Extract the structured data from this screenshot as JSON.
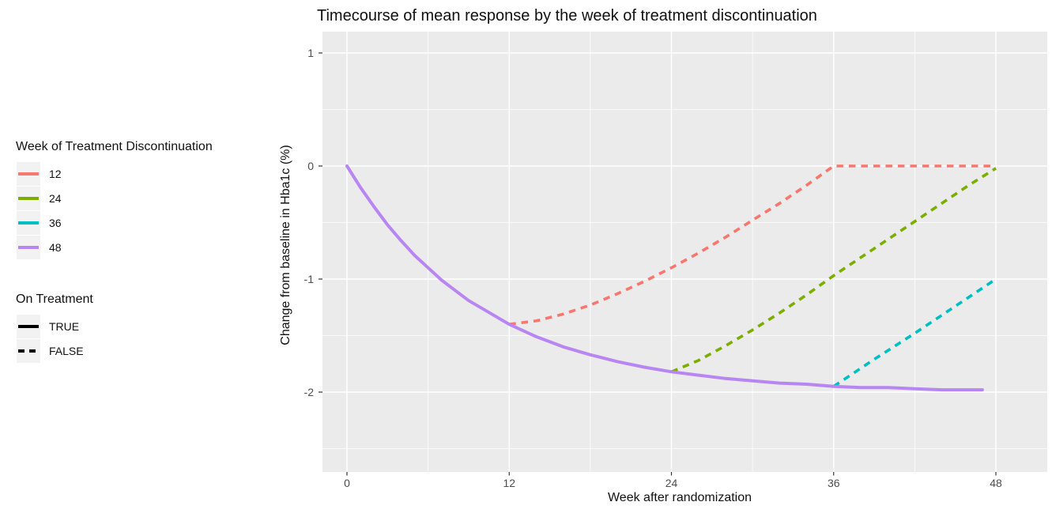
{
  "chart_data": {
    "type": "line",
    "title": "Timecourse of mean response by the week of treatment discontinuation",
    "xlabel": "Week after randomization",
    "ylabel": "Change from baseline in Hba1c (%)",
    "x_ticks": [
      0,
      12,
      24,
      36,
      48
    ],
    "x_minor_ticks": [
      6,
      18,
      30,
      42
    ],
    "y_ticks": [
      1,
      0,
      -1,
      -2
    ],
    "y_minor_ticks": [
      0.5,
      -0.5,
      -1.5,
      -2.5
    ],
    "xlim": [
      -1.8,
      51.8
    ],
    "ylim": [
      -2.7,
      1.19
    ],
    "grid": "white major and minor gridlines on grey panel",
    "legend_position": "left",
    "panel_bg": "#EBEBEB",
    "series": [
      {
        "name": "12",
        "on_treatment": "FALSE",
        "linetype": "dashed",
        "color": "#F8766D",
        "points": [
          [
            12,
            -1.4
          ],
          [
            14,
            -1.37
          ],
          [
            16,
            -1.31
          ],
          [
            18,
            -1.23
          ],
          [
            20,
            -1.13
          ],
          [
            22,
            -1.02
          ],
          [
            24,
            -0.9
          ],
          [
            26,
            -0.77
          ],
          [
            28,
            -0.63
          ],
          [
            30,
            -0.48
          ],
          [
            32,
            -0.33
          ],
          [
            34,
            -0.17
          ],
          [
            36,
            0
          ],
          [
            48,
            0
          ]
        ]
      },
      {
        "name": "24",
        "on_treatment": "FALSE",
        "linetype": "dashed",
        "color": "#7CAE00",
        "points": [
          [
            24,
            -1.82
          ],
          [
            26,
            -1.72
          ],
          [
            28,
            -1.59
          ],
          [
            30,
            -1.45
          ],
          [
            32,
            -1.3
          ],
          [
            34,
            -1.14
          ],
          [
            36,
            -0.97
          ],
          [
            38,
            -0.81
          ],
          [
            40,
            -0.65
          ],
          [
            42,
            -0.49
          ],
          [
            44,
            -0.33
          ],
          [
            46,
            -0.17
          ],
          [
            48,
            -0.02
          ]
        ]
      },
      {
        "name": "36",
        "on_treatment": "FALSE",
        "linetype": "dashed",
        "color": "#00BFC4",
        "points": [
          [
            36,
            -1.95
          ],
          [
            39,
            -1.71
          ],
          [
            42,
            -1.48
          ],
          [
            45,
            -1.24
          ],
          [
            48,
            -1.0
          ]
        ]
      },
      {
        "name": "48",
        "on_treatment": "TRUE",
        "linetype": "solid",
        "color": "#B886F2",
        "points": [
          [
            0,
            0
          ],
          [
            1,
            -0.19
          ],
          [
            2,
            -0.36
          ],
          [
            3,
            -0.52
          ],
          [
            4,
            -0.66
          ],
          [
            5,
            -0.79
          ],
          [
            6,
            -0.9
          ],
          [
            7,
            -1.01
          ],
          [
            8,
            -1.1
          ],
          [
            9,
            -1.19
          ],
          [
            10,
            -1.26
          ],
          [
            11,
            -1.33
          ],
          [
            12,
            -1.4
          ],
          [
            14,
            -1.51
          ],
          [
            16,
            -1.6
          ],
          [
            18,
            -1.67
          ],
          [
            20,
            -1.73
          ],
          [
            22,
            -1.78
          ],
          [
            24,
            -1.82
          ],
          [
            26,
            -1.85
          ],
          [
            28,
            -1.88
          ],
          [
            30,
            -1.9
          ],
          [
            32,
            -1.92
          ],
          [
            34,
            -1.93
          ],
          [
            36,
            -1.95
          ],
          [
            38,
            -1.96
          ],
          [
            40,
            -1.96
          ],
          [
            42,
            -1.97
          ],
          [
            44,
            -1.98
          ],
          [
            46,
            -1.98
          ],
          [
            47,
            -1.98
          ]
        ]
      }
    ]
  },
  "legends": {
    "color": {
      "title": "Week of Treatment Discontinuation",
      "items": [
        {
          "label": "12",
          "color": "#F8766D",
          "dashed": false
        },
        {
          "label": "24",
          "color": "#7CAE00",
          "dashed": false
        },
        {
          "label": "36",
          "color": "#00BFC4",
          "dashed": false
        },
        {
          "label": "48",
          "color": "#B886F2",
          "dashed": false
        }
      ]
    },
    "linetype": {
      "title": "On Treatment",
      "items": [
        {
          "label": "TRUE",
          "color": "#000000",
          "dashed": false
        },
        {
          "label": "FALSE",
          "color": "#000000",
          "dashed": true
        }
      ]
    }
  }
}
